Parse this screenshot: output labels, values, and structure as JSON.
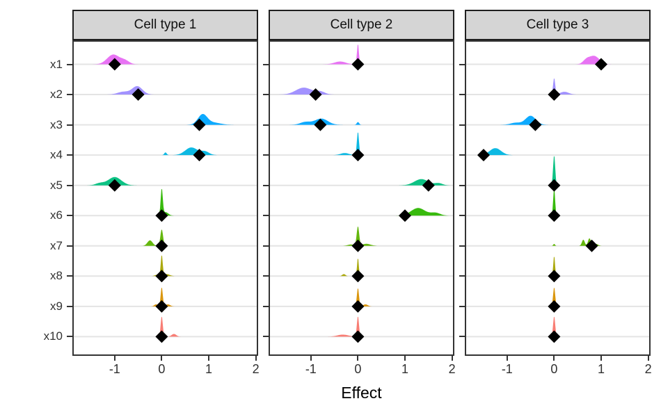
{
  "figure": {
    "xlabel": "Effect",
    "strip_bg": "#D5D5D5",
    "strip_border": "#1F1F1F",
    "panel_border": "#333333",
    "gridline_color": "#E4E4E4",
    "marker_color": "#000000",
    "axis_text_color": "#333333"
  },
  "chart_data": {
    "type": "area",
    "subtype": "faceted-ridgeline-with-point-estimates",
    "xlabel": "Effect",
    "ylabel": "",
    "xlim": [
      -1.9,
      2.05
    ],
    "x_ticks": [
      -1,
      0,
      1,
      2
    ],
    "grid": "horizontal-only",
    "categories": [
      "x1",
      "x2",
      "x3",
      "x4",
      "x5",
      "x6",
      "x7",
      "x8",
      "x9",
      "x10"
    ],
    "palette": {
      "x1": "#E76BF3",
      "x2": "#9D8CFF",
      "x3": "#00A5FF",
      "x4": "#00B5E2",
      "x5": "#00BF7D",
      "x6": "#2DB600",
      "x7": "#5CB300",
      "x8": "#A6A400",
      "x9": "#D89000",
      "x10": "#F8766D"
    },
    "facets": [
      {
        "label": "Cell type 1",
        "effects": {
          "x1": -1.0,
          "x2": -0.5,
          "x3": 0.8,
          "x4": 0.8,
          "x5": -1.0,
          "x6": 0,
          "x7": 0,
          "x8": 0,
          "x9": 0,
          "x10": 0
        },
        "densities": {
          "x1": [
            [
              -1.03,
              0.13,
              14
            ],
            [
              -0.78,
              0.09,
              5
            ]
          ],
          "x2": [
            [
              -0.52,
              0.11,
              12
            ],
            [
              -0.82,
              0.12,
              4
            ]
          ],
          "x3": [
            [
              0.87,
              0.1,
              15
            ],
            [
              1.12,
              0.14,
              3
            ]
          ],
          "x4": [
            [
              0.63,
              0.13,
              11
            ],
            [
              0.92,
              0.09,
              5
            ],
            [
              0.08,
              0.025,
              4
            ]
          ],
          "x5": [
            [
              -1.0,
              0.14,
              12
            ],
            [
              -1.32,
              0.09,
              3
            ]
          ],
          "x6": [
            [
              0,
              0.022,
              38
            ],
            [
              0.08,
              0.06,
              5
            ]
          ],
          "x7": [
            [
              0,
              0.028,
              24
            ],
            [
              -0.25,
              0.055,
              8
            ]
          ],
          "x8": [
            [
              0,
              0.02,
              30
            ],
            [
              0.1,
              0.07,
              3
            ],
            [
              -0.1,
              0.05,
              2
            ]
          ],
          "x9": [
            [
              0,
              0.022,
              28
            ],
            [
              0.13,
              0.05,
              3
            ],
            [
              -0.12,
              0.04,
              3
            ]
          ],
          "x10": [
            [
              0,
              0.022,
              30
            ],
            [
              0.26,
              0.05,
              4
            ]
          ]
        }
      },
      {
        "label": "Cell type 2",
        "effects": {
          "x1": 0,
          "x2": -0.9,
          "x3": -0.8,
          "x4": 0,
          "x5": 1.5,
          "x6": 1.0,
          "x7": 0,
          "x8": 0,
          "x9": 0,
          "x10": 0
        },
        "densities": {
          "x1": [
            [
              0,
              0.02,
              30
            ],
            [
              -0.38,
              0.12,
              4
            ]
          ],
          "x2": [
            [
              -1.15,
              0.17,
              10
            ],
            [
              -0.8,
              0.1,
              4
            ]
          ],
          "x3": [
            [
              -0.78,
              0.14,
              9
            ],
            [
              -1.12,
              0.11,
              4
            ],
            [
              0,
              0.025,
              4
            ]
          ],
          "x4": [
            [
              0,
              0.022,
              34
            ],
            [
              -0.28,
              0.09,
              3
            ]
          ],
          "x5": [
            [
              1.35,
              0.15,
              9
            ],
            [
              1.72,
              0.08,
              3
            ]
          ],
          "x6": [
            [
              1.28,
              0.15,
              11
            ],
            [
              1.65,
              0.1,
              4
            ]
          ],
          "x7": [
            [
              0,
              0.026,
              28
            ],
            [
              0.18,
              0.09,
              3
            ],
            [
              -0.15,
              0.07,
              2
            ]
          ],
          "x8": [
            [
              0,
              0.018,
              27
            ],
            [
              -0.3,
              0.035,
              3
            ]
          ],
          "x9": [
            [
              0,
              0.022,
              27
            ],
            [
              0.16,
              0.05,
              3
            ]
          ],
          "x10": [
            [
              0,
              0.022,
              30
            ],
            [
              -0.32,
              0.12,
              3
            ]
          ]
        }
      },
      {
        "label": "Cell type 3",
        "effects": {
          "x1": 1.0,
          "x2": 0,
          "x3": -0.4,
          "x4": -1.5,
          "x5": 0,
          "x6": 0,
          "x7": 0.8,
          "x8": 0,
          "x9": 0,
          "x10": 0
        },
        "densities": {
          "x1": [
            [
              0.85,
              0.11,
              12
            ],
            [
              0.68,
              0.07,
              5
            ]
          ],
          "x2": [
            [
              0,
              0.022,
              24
            ],
            [
              0.22,
              0.09,
              4
            ]
          ],
          "x3": [
            [
              -0.5,
              0.11,
              13
            ],
            [
              -0.82,
              0.11,
              3
            ]
          ],
          "x4": [
            [
              -1.25,
              0.12,
              10
            ]
          ],
          "x5": [
            [
              0,
              0.022,
              44
            ]
          ],
          "x6": [
            [
              0,
              0.02,
              40
            ]
          ],
          "x7": [
            [
              0.62,
              0.03,
              9
            ],
            [
              0.75,
              0.03,
              11
            ],
            [
              0.88,
              0.05,
              3
            ],
            [
              0,
              0.018,
              3
            ]
          ],
          "x8": [
            [
              0,
              0.018,
              30
            ]
          ],
          "x9": [
            [
              0,
              0.022,
              28
            ]
          ],
          "x10": [
            [
              0,
              0.022,
              30
            ]
          ]
        }
      }
    ]
  }
}
